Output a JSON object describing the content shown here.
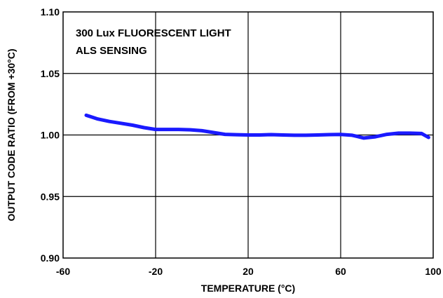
{
  "chart_data": {
    "type": "line",
    "title": "",
    "annotations": [
      "300 Lux FLUORESCENT LIGHT",
      "ALS SENSING"
    ],
    "xlabel": "TEMPERATURE (°C)",
    "ylabel": "OUTPUT CODE RATIO (FROM +30°C)",
    "xlim": [
      -60,
      100
    ],
    "ylim": [
      0.9,
      1.1
    ],
    "xticks": [
      -60,
      -20,
      20,
      60,
      100
    ],
    "xtick_labels": [
      "-60",
      "-20",
      "20",
      "60",
      "100"
    ],
    "yticks": [
      0.9,
      0.95,
      1.0,
      1.05,
      1.1
    ],
    "ytick_labels": [
      "0.90",
      "0.95",
      "1.00",
      "1.05",
      "1.10"
    ],
    "grid": true,
    "legend": "none",
    "series": [
      {
        "color": "#1a1aff",
        "x": [
          -50,
          -45,
          -40,
          -35,
          -30,
          -25,
          -20,
          -15,
          -10,
          -5,
          0,
          5,
          10,
          15,
          20,
          25,
          30,
          35,
          40,
          45,
          50,
          55,
          60,
          65,
          70,
          75,
          80,
          85,
          90,
          95,
          98
        ],
        "y": [
          1.016,
          1.013,
          1.011,
          1.0095,
          1.008,
          1.006,
          1.0045,
          1.0045,
          1.0045,
          1.0042,
          1.0035,
          1.002,
          1.0005,
          1.0002,
          1.0,
          1.0,
          1.0003,
          1.0,
          0.9998,
          0.9998,
          1.0,
          1.0003,
          1.0004,
          0.9998,
          0.9975,
          0.9985,
          1.0005,
          1.0015,
          1.0015,
          1.0012,
          0.998
        ]
      }
    ]
  }
}
